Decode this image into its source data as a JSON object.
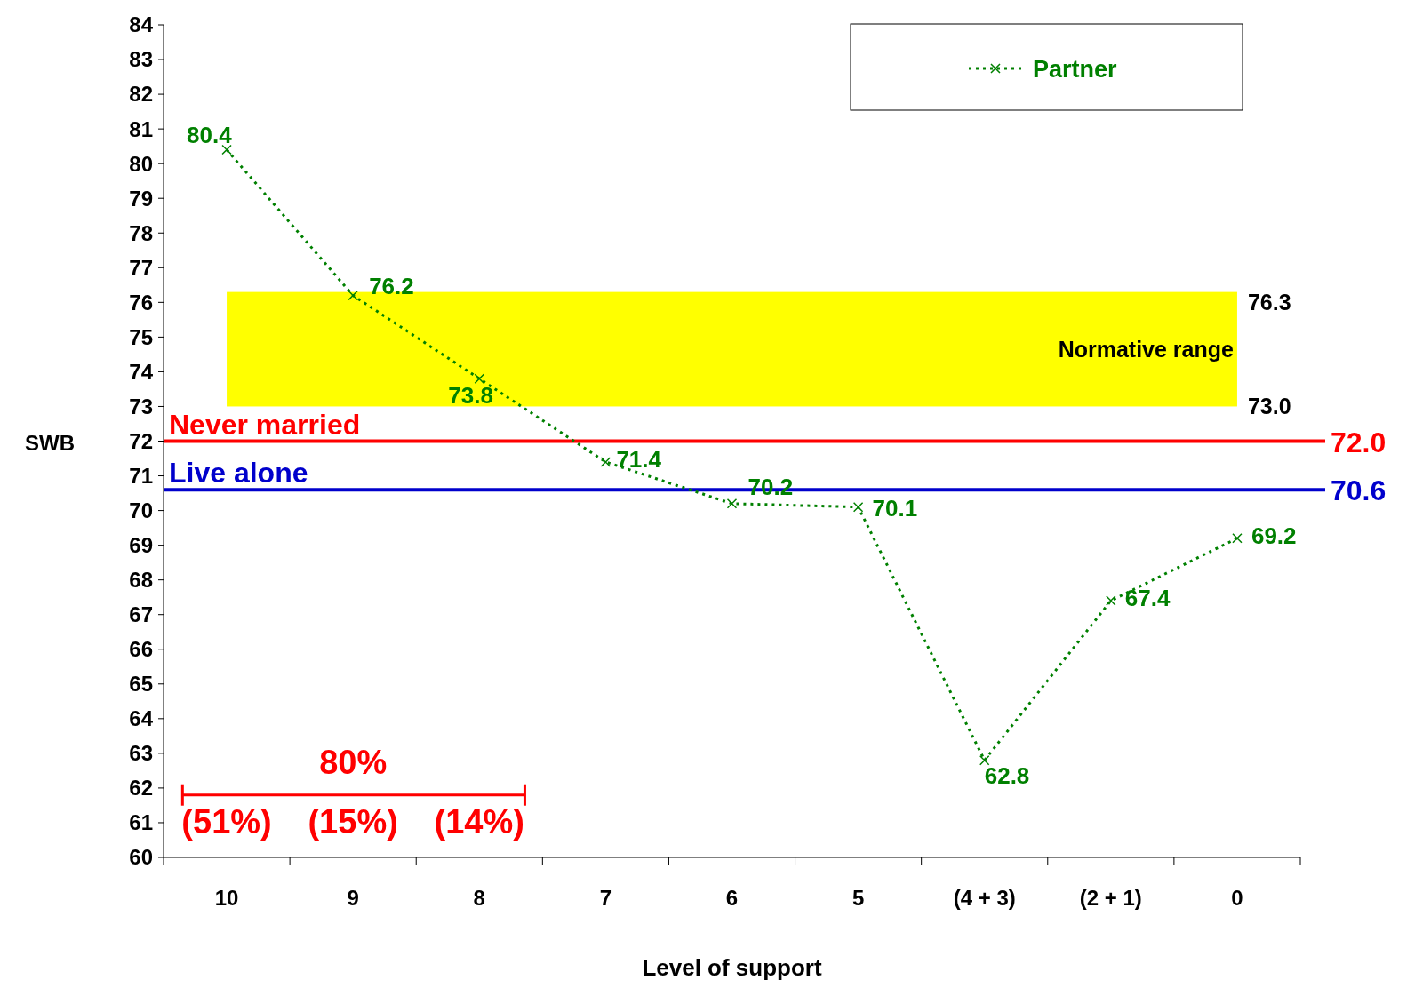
{
  "chart_data": {
    "type": "line",
    "xlabel": "Level of support",
    "ylabel": "SWB",
    "categories": [
      "10",
      "9",
      "8",
      "7",
      "6",
      "5",
      "(4 + 3)",
      "(2 + 1)",
      "0"
    ],
    "series": [
      {
        "name": "Partner",
        "color": "#008000",
        "values": [
          80.4,
          76.2,
          73.8,
          71.4,
          70.2,
          70.1,
          62.8,
          67.4,
          69.2
        ]
      }
    ],
    "ylim": [
      60,
      84
    ],
    "yticks": [
      60,
      61,
      62,
      63,
      64,
      65,
      66,
      67,
      68,
      69,
      70,
      71,
      72,
      73,
      74,
      75,
      76,
      77,
      78,
      79,
      80,
      81,
      82,
      83,
      84
    ],
    "marker": "cross",
    "line_style": "dotted",
    "data_labels": true,
    "legend": "top right",
    "grid": false,
    "bands": [
      {
        "axis": "y",
        "from": 73.0,
        "to": 76.3,
        "label": "Normative range",
        "color": "#ffff00"
      }
    ],
    "ref_lines": [
      {
        "axis": "y",
        "value": 72.0,
        "label": "Never married",
        "color": "#ff0000"
      },
      {
        "axis": "y",
        "value": 70.6,
        "label": "Live alone",
        "color": "#0000cc"
      }
    ],
    "annotations": [
      "80%",
      "(51%)",
      "(15%)",
      "(14%)",
      "76.3",
      "73.0",
      "72.0",
      "70.6"
    ]
  }
}
